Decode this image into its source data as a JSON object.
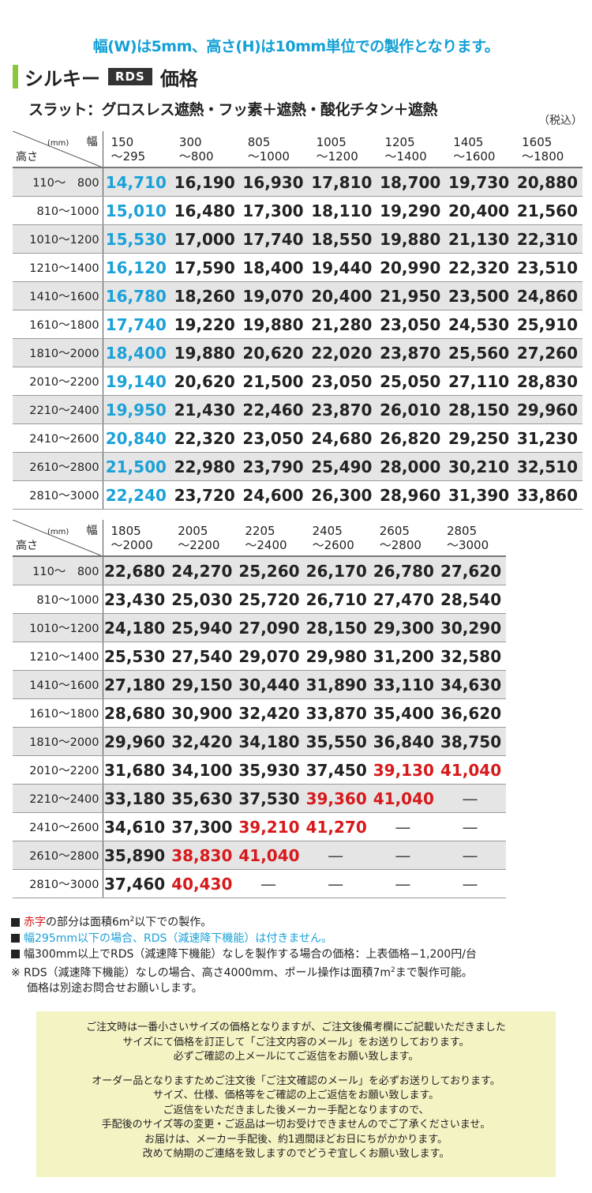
{
  "notice": "幅(W)は5mm、高さ(H)は10mm単位での製作となります。",
  "title": {
    "text": "シルキー",
    "badge": "RDS",
    "suffix": "価格"
  },
  "subtitle": "スラット：グロスレス遮熱・フッ素＋遮熱・酸化チタン＋遮熱",
  "tax_note": "（税込）",
  "corner": {
    "width": "幅",
    "unit": "(mm)",
    "height": "高さ"
  },
  "table1": {
    "columns": [
      {
        "l1": "150",
        "l2": "～295"
      },
      {
        "l1": "300",
        "l2": "～800"
      },
      {
        "l1": "805",
        "l2": "～1000"
      },
      {
        "l1": "1005",
        "l2": "～1200"
      },
      {
        "l1": "1205",
        "l2": "～1400"
      },
      {
        "l1": "1405",
        "l2": "～1600"
      },
      {
        "l1": "1605",
        "l2": "～1800"
      }
    ],
    "rows": [
      {
        "h": "110～　800",
        "v": [
          "14,710",
          "16,190",
          "16,930",
          "17,810",
          "18,700",
          "19,730",
          "20,880"
        ]
      },
      {
        "h": "810～1000",
        "v": [
          "15,010",
          "16,480",
          "17,300",
          "18,110",
          "19,290",
          "20,400",
          "21,560"
        ]
      },
      {
        "h": "1010～1200",
        "v": [
          "15,530",
          "17,000",
          "17,740",
          "18,550",
          "19,880",
          "21,130",
          "22,310"
        ]
      },
      {
        "h": "1210～1400",
        "v": [
          "16,120",
          "17,590",
          "18,400",
          "19,440",
          "20,990",
          "22,320",
          "23,510"
        ]
      },
      {
        "h": "1410～1600",
        "v": [
          "16,780",
          "18,260",
          "19,070",
          "20,400",
          "21,950",
          "23,500",
          "24,860"
        ]
      },
      {
        "h": "1610～1800",
        "v": [
          "17,740",
          "19,220",
          "19,880",
          "21,280",
          "23,050",
          "24,530",
          "25,910"
        ]
      },
      {
        "h": "1810～2000",
        "v": [
          "18,400",
          "19,880",
          "20,620",
          "22,020",
          "23,870",
          "25,560",
          "27,260"
        ]
      },
      {
        "h": "2010～2200",
        "v": [
          "19,140",
          "20,620",
          "21,500",
          "23,050",
          "25,050",
          "27,110",
          "28,830"
        ]
      },
      {
        "h": "2210～2400",
        "v": [
          "19,950",
          "21,430",
          "22,460",
          "23,870",
          "26,010",
          "28,150",
          "29,960"
        ]
      },
      {
        "h": "2410～2600",
        "v": [
          "20,840",
          "22,320",
          "23,050",
          "24,680",
          "26,820",
          "29,250",
          "31,230"
        ]
      },
      {
        "h": "2610～2800",
        "v": [
          "21,500",
          "22,980",
          "23,790",
          "25,490",
          "28,000",
          "30,210",
          "32,510"
        ]
      },
      {
        "h": "2810～3000",
        "v": [
          "22,240",
          "23,720",
          "24,600",
          "26,300",
          "28,960",
          "31,390",
          "33,860"
        ]
      }
    ]
  },
  "table2": {
    "columns": [
      {
        "l1": "1805",
        "l2": "～2000"
      },
      {
        "l1": "2005",
        "l2": "～2200"
      },
      {
        "l1": "2205",
        "l2": "～2400"
      },
      {
        "l1": "2405",
        "l2": "～2600"
      },
      {
        "l1": "2605",
        "l2": "～2800"
      },
      {
        "l1": "2805",
        "l2": "～3000"
      }
    ],
    "rows": [
      {
        "h": "110～　800",
        "v": [
          "22,680",
          "24,270",
          "25,260",
          "26,170",
          "26,780",
          "27,620"
        ]
      },
      {
        "h": "810～1000",
        "v": [
          "23,430",
          "25,030",
          "25,720",
          "26,710",
          "27,470",
          "28,540"
        ]
      },
      {
        "h": "1010～1200",
        "v": [
          "24,180",
          "25,940",
          "27,090",
          "28,150",
          "29,300",
          "30,290"
        ]
      },
      {
        "h": "1210～1400",
        "v": [
          "25,530",
          "27,540",
          "29,070",
          "29,980",
          "31,200",
          "32,580"
        ]
      },
      {
        "h": "1410～1600",
        "v": [
          "27,180",
          "29,150",
          "30,440",
          "31,890",
          "33,110",
          "34,630"
        ]
      },
      {
        "h": "1610～1800",
        "v": [
          "28,680",
          "30,900",
          "32,420",
          "33,870",
          "35,400",
          "36,620"
        ]
      },
      {
        "h": "1810～2000",
        "v": [
          "29,960",
          "32,420",
          "34,180",
          "35,550",
          "36,840",
          "38,750"
        ]
      },
      {
        "h": "2010～2200",
        "v": [
          "31,680",
          "34,100",
          "35,930",
          "37,450",
          "39,130",
          "41,040"
        ]
      },
      {
        "h": "2210～2400",
        "v": [
          "33,180",
          "35,630",
          "37,530",
          "39,360",
          "41,040",
          "—"
        ]
      },
      {
        "h": "2410～2600",
        "v": [
          "34,610",
          "37,300",
          "39,210",
          "41,270",
          "—",
          "—"
        ]
      },
      {
        "h": "2610～2800",
        "v": [
          "35,890",
          "38,830",
          "41,040",
          "—",
          "—",
          "—"
        ]
      },
      {
        "h": "2810～3000",
        "v": [
          "37,460",
          "40,430",
          "—",
          "—",
          "—",
          "—"
        ]
      }
    ],
    "red_cells": [
      [
        7,
        4
      ],
      [
        7,
        5
      ],
      [
        8,
        3
      ],
      [
        8,
        4
      ],
      [
        9,
        2
      ],
      [
        9,
        3
      ],
      [
        10,
        1
      ],
      [
        10,
        2
      ],
      [
        11,
        1
      ]
    ]
  },
  "colors": {
    "blue": "#1ba1d8",
    "red": "#d7191b",
    "green": "#8cc63e",
    "shade": "#e5e5e5",
    "note_bg": "#f4f3c4"
  },
  "notes": {
    "n1_red": "赤字",
    "n1_a": "の部分は面積6m",
    "n1_sup": "2",
    "n1_b": "以下での製作。",
    "n2": "幅295mm以下の場合、RDS（減速降下機能）は付きません。",
    "n3": "幅300mm以上でRDS（減速降下機能）なしを製作する場合の価格：上表価格−1,200円/台",
    "n4_a": "※  RDS（減速降下機能）なしの場合、高さ4000mm、ポール操作は面積7m",
    "n4_sup": "2",
    "n4_b": "まで製作可能。",
    "n5": "価格は別途お問合せお願いします。"
  },
  "info": [
    "ご注文時は一番小さいサイズの価格となりますが、ご注文後備考欄にご記載いただきました",
    "サイズにて価格を訂正して「ご注文内容のメール」をお送りしております。",
    "必ずご確認の上メールにてご返信をお願い致します。",
    "オーダー品となりますためご注文後「ご注文確認のメール」を必ずお送りしております。",
    "サイズ、仕様、価格等をご確認の上ご返信をお願い致します。",
    "ご返信をいただきました後メーカー手配となりますので、",
    "手配後のサイズ等の変更・ご返品は一切お受けできませんのでご了承くださいませ。",
    "お届けは、メーカー手配後、約1週間ほどお日にちがかかります。",
    "改めて納期のご連絡を致しますのでどうぞ宜しくお願い致します。"
  ]
}
